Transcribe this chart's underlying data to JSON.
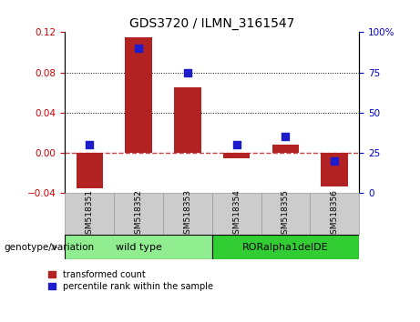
{
  "title": "GDS3720 / ILMN_3161547",
  "categories": [
    "GSM518351",
    "GSM518352",
    "GSM518353",
    "GSM518354",
    "GSM518355",
    "GSM518356"
  ],
  "bar_values": [
    -0.035,
    0.115,
    0.065,
    -0.005,
    0.008,
    -0.033
  ],
  "dot_values": [
    30,
    90,
    75,
    30,
    35,
    20
  ],
  "ylim_left": [
    -0.04,
    0.12
  ],
  "ylim_right": [
    0,
    100
  ],
  "yticks_left": [
    -0.04,
    0.0,
    0.04,
    0.08,
    0.12
  ],
  "yticks_right": [
    0,
    25,
    50,
    75,
    100
  ],
  "bar_color": "#b22222",
  "dot_color": "#1c1ccd",
  "bar_width": 0.55,
  "groups": [
    {
      "label": "wild type",
      "indices": [
        0,
        1,
        2
      ],
      "color": "#90ee90"
    },
    {
      "label": "RORalpha1delDE",
      "indices": [
        3,
        4,
        5
      ],
      "color": "#32cd32"
    }
  ],
  "group_label": "genotype/variation",
  "legend_bar_label": "transformed count",
  "legend_dot_label": "percentile rank within the sample",
  "tick_label_color_left": "#cc0000",
  "tick_label_color_right": "#0000cc",
  "zero_line_color": "#cc4444",
  "dotted_line_color": "#000000",
  "label_box_color": "#cccccc",
  "label_box_edge": "#999999"
}
